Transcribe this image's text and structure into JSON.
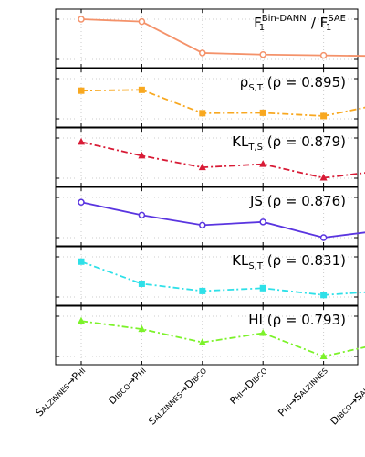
{
  "chart_data": {
    "type": "line",
    "layout": "vertical-stack",
    "categories": [
      "Salzinnes→Phi",
      "Dibco→Phi",
      "Salzinnes→Dibco",
      "Phi→Dibco",
      "Phi→Salzinnes",
      "Dibco→Salzinnes"
    ],
    "panels": [
      {
        "title_main": "F",
        "title_sub": "1",
        "title_sup": "Bin-DANN",
        "title_sep": " / ",
        "title_main2": "F",
        "title_sub2": "1",
        "title_sup2": "SAE",
        "values": [
          1.0,
          0.94,
          0.16,
          0.12,
          0.1,
          0.08
        ],
        "color": "#f4926a",
        "marker": "circle-open",
        "dash": "solid"
      },
      {
        "rho_symbol": "ρ",
        "title_sub": "S,T",
        "rho_text": " (ρ = 0.895)",
        "values": [
          0.7,
          0.72,
          0.14,
          0.15,
          0.07,
          0.38
        ],
        "color": "#f8a820",
        "marker": "square",
        "dash": "dashdot"
      },
      {
        "title_main": "KL",
        "title_sub": "T,S",
        "rho_text": " (ρ = 0.879)",
        "values": [
          0.9,
          0.56,
          0.27,
          0.35,
          0.01,
          0.19
        ],
        "color": "#d81b36",
        "marker": "triangle",
        "dash": "dashdot"
      },
      {
        "title_main": "JS",
        "rho_text": " (ρ = 0.876)",
        "values": [
          0.88,
          0.56,
          0.31,
          0.39,
          0.0,
          0.19
        ],
        "color": "#5a35e0",
        "marker": "circle-open",
        "dash": "solid"
      },
      {
        "title_main": "KL",
        "title_sub": "S,T",
        "rho_text": " (ρ = 0.831)",
        "values": [
          0.88,
          0.33,
          0.15,
          0.22,
          0.05,
          0.15
        ],
        "color": "#2ee0e8",
        "marker": "square",
        "dash": "dashdot"
      },
      {
        "title_main": "HI",
        "rho_text": " (ρ = 0.793)",
        "values": [
          0.88,
          0.68,
          0.35,
          0.58,
          0.0,
          0.34
        ],
        "color": "#7cf22a",
        "marker": "triangle",
        "dash": "dashdot"
      }
    ],
    "xlabel": "",
    "ylabel": "",
    "ylim": [
      0,
      1
    ],
    "grid": "dotted"
  }
}
